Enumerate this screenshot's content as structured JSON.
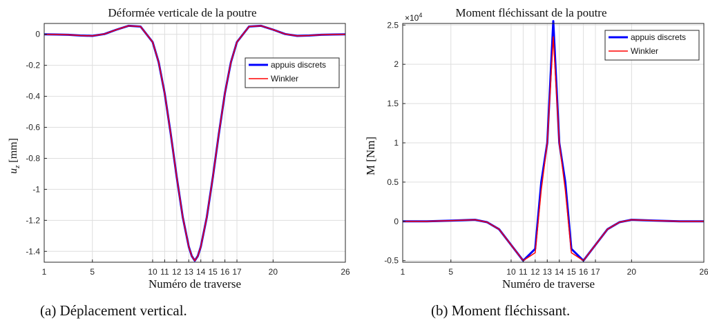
{
  "chart_data": [
    {
      "type": "line",
      "title": "Déformée verticale de la poutre",
      "xlabel": "Numéro de traverse",
      "ylabel_main": "u",
      "ylabel_sub": "z",
      "ylabel_unit": "[mm]",
      "xlim": [
        1,
        26
      ],
      "ylim": [
        -1.47,
        0.07
      ],
      "x_ticks": [
        1,
        5,
        10,
        11,
        12,
        13,
        14,
        15,
        16,
        17,
        20,
        26
      ],
      "x_tick_labels": [
        "1",
        "5",
        "10",
        "11",
        "12",
        "13",
        "14",
        "15",
        "16",
        "17",
        "20",
        "26"
      ],
      "y_ticks": [
        0,
        -0.2,
        -0.4,
        -0.6,
        -0.8,
        -1,
        -1.2,
        -1.4
      ],
      "y_tick_labels": [
        "0",
        "-0.2",
        "-0.4",
        "-0.6",
        "-0.8",
        "-1",
        "-1.2",
        "-1.4"
      ],
      "grid": true,
      "legend_position": "upper-right",
      "series": [
        {
          "name": "appuis discrets",
          "color": "#0000ff",
          "x": [
            1,
            2,
            3,
            4,
            5,
            6,
            7,
            8,
            9,
            10,
            10.5,
            11,
            11.5,
            12,
            12.5,
            13,
            13.25,
            13.5,
            13.75,
            14,
            14.5,
            15,
            15.5,
            16,
            16.5,
            17,
            18,
            19,
            20,
            21,
            22,
            23,
            24,
            25,
            26
          ],
          "values": [
            0,
            -0.001,
            -0.003,
            -0.008,
            -0.01,
            0.002,
            0.03,
            0.055,
            0.05,
            -0.05,
            -0.18,
            -0.38,
            -0.64,
            -0.92,
            -1.18,
            -1.37,
            -1.43,
            -1.46,
            -1.43,
            -1.37,
            -1.18,
            -0.92,
            -0.64,
            -0.38,
            -0.18,
            -0.05,
            0.05,
            0.055,
            0.03,
            0.002,
            -0.01,
            -0.008,
            -0.003,
            -0.001,
            0
          ]
        },
        {
          "name": "Winkler",
          "color": "#ff0000",
          "x": [
            1,
            2,
            3,
            4,
            5,
            6,
            7,
            8,
            9,
            10,
            10.5,
            11,
            11.5,
            12,
            12.5,
            13,
            13.25,
            13.5,
            13.75,
            14,
            14.5,
            15,
            15.5,
            16,
            16.5,
            17,
            18,
            19,
            20,
            21,
            22,
            23,
            24,
            25,
            26
          ],
          "values": [
            0,
            -0.001,
            -0.003,
            -0.008,
            -0.01,
            0.002,
            0.03,
            0.055,
            0.05,
            -0.05,
            -0.18,
            -0.38,
            -0.64,
            -0.92,
            -1.18,
            -1.37,
            -1.43,
            -1.46,
            -1.43,
            -1.37,
            -1.18,
            -0.92,
            -0.64,
            -0.38,
            -0.18,
            -0.05,
            0.05,
            0.055,
            0.03,
            0.002,
            -0.01,
            -0.008,
            -0.003,
            -0.001,
            0
          ]
        }
      ]
    },
    {
      "type": "line",
      "title": "Moment fléchissant de la poutre",
      "xlabel": "Numéro de traverse",
      "ylabel": "M [Nm]",
      "exponent_base": "×10",
      "exponent_power": "4",
      "xlim": [
        1,
        26
      ],
      "ylim": [
        -0.52,
        2.52
      ],
      "x_ticks": [
        1,
        5,
        10,
        11,
        12,
        13,
        14,
        15,
        16,
        17,
        20,
        26
      ],
      "x_tick_labels": [
        "1",
        "5",
        "10",
        "11",
        "12",
        "13",
        "14",
        "15",
        "16",
        "17",
        "20",
        "26"
      ],
      "y_ticks": [
        2.5,
        2,
        1.5,
        1,
        0.5,
        0,
        -0.5
      ],
      "y_tick_labels": [
        "2.5",
        "2",
        "1.5",
        "1",
        "0.5",
        "0",
        "-0.5"
      ],
      "grid": true,
      "legend_position": "upper-right",
      "series": [
        {
          "name": "appuis discrets",
          "color": "#0000ff",
          "x": [
            1,
            2,
            3,
            4,
            5,
            6,
            7,
            8,
            9,
            10,
            11,
            12,
            12.5,
            13,
            13.5,
            14,
            14.5,
            15,
            16,
            17,
            18,
            19,
            20,
            21,
            22,
            23,
            24,
            25,
            26
          ],
          "values": [
            0,
            0,
            0,
            0.005,
            0.01,
            0.015,
            0.02,
            -0.01,
            -0.1,
            -0.3,
            -0.5,
            -0.35,
            0.5,
            1.0,
            2.55,
            1.0,
            0.5,
            -0.35,
            -0.5,
            -0.3,
            -0.1,
            -0.01,
            0.02,
            0.015,
            0.01,
            0.005,
            0,
            0,
            0
          ]
        },
        {
          "name": "Winkler",
          "color": "#ff0000",
          "x": [
            1,
            2,
            3,
            4,
            5,
            6,
            7,
            8,
            9,
            10,
            11,
            12,
            12.5,
            13,
            13.5,
            14,
            14.5,
            15,
            16,
            17,
            18,
            19,
            20,
            21,
            22,
            23,
            24,
            25,
            26
          ],
          "values": [
            0,
            0,
            0,
            0.005,
            0.01,
            0.015,
            0.02,
            -0.01,
            -0.1,
            -0.3,
            -0.5,
            -0.4,
            0.4,
            1.0,
            2.35,
            1.0,
            0.4,
            -0.4,
            -0.5,
            -0.3,
            -0.1,
            -0.01,
            0.02,
            0.015,
            0.01,
            0.005,
            0,
            0,
            0
          ]
        }
      ]
    }
  ],
  "captions": {
    "a": "(a) Déplacement vertical.",
    "b": "(b) Moment fléchissant."
  }
}
